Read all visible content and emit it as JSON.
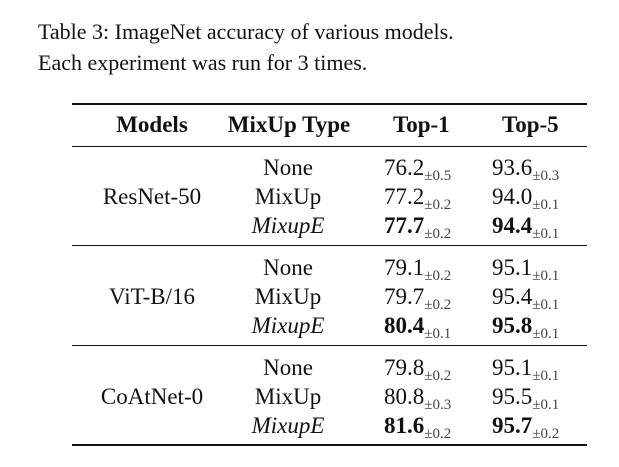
{
  "caption": {
    "line1": "Table 3: ImageNet accuracy of various models.",
    "line2": "Each experiment was run for 3 times."
  },
  "table": {
    "headers": {
      "models": "Models",
      "mixup_type": "MixUp Type",
      "top1": "Top-1",
      "top5": "Top-5"
    },
    "groups": [
      {
        "model": "ResNet-50",
        "rows": [
          {
            "type": "None",
            "top1": "76.2",
            "top1_pm": "±0.5",
            "top5": "93.6",
            "top5_pm": "±0.3"
          },
          {
            "type": "MixUp",
            "top1": "77.2",
            "top1_pm": "±0.2",
            "top5": "94.0",
            "top5_pm": "±0.1"
          },
          {
            "type": "MixupE",
            "top1": "77.7",
            "top1_pm": "±0.2",
            "top5": "94.4",
            "top5_pm": "±0.1"
          }
        ]
      },
      {
        "model": "ViT-B/16",
        "rows": [
          {
            "type": "None",
            "top1": "79.1",
            "top1_pm": "±0.2",
            "top5": "95.1",
            "top5_pm": "±0.1"
          },
          {
            "type": "MixUp",
            "top1": "79.7",
            "top1_pm": "±0.2",
            "top5": "95.4",
            "top5_pm": "±0.1"
          },
          {
            "type": "MixupE",
            "top1": "80.4",
            "top1_pm": "±0.1",
            "top5": "95.8",
            "top5_pm": "±0.1"
          }
        ]
      },
      {
        "model": "CoAtNet-0",
        "rows": [
          {
            "type": "None",
            "top1": "79.8",
            "top1_pm": "±0.2",
            "top5": "95.1",
            "top5_pm": "±0.1"
          },
          {
            "type": "MixUp",
            "top1": "80.8",
            "top1_pm": "±0.3",
            "top5": "95.5",
            "top5_pm": "±0.1"
          },
          {
            "type": "MixupE",
            "top1": "81.6",
            "top1_pm": "±0.2",
            "top5": "95.7",
            "top5_pm": "±0.2"
          }
        ]
      }
    ]
  }
}
